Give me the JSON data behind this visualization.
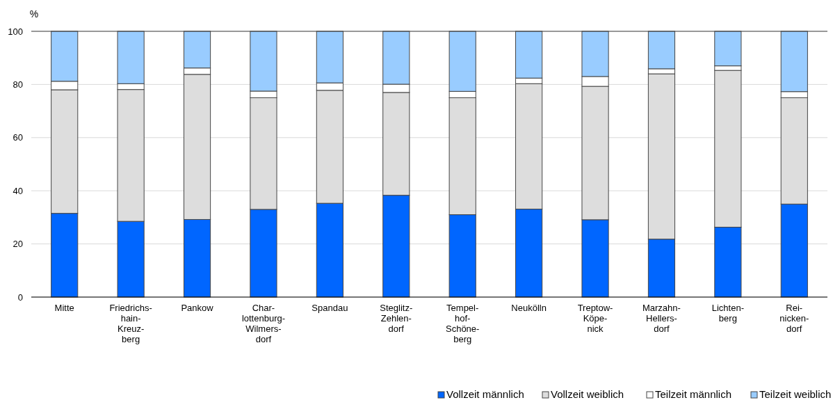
{
  "chart_data": {
    "type": "bar",
    "stacked": true,
    "ylabel": "%",
    "categories": [
      "Mitte",
      "Friedrichs-\nhain-\nKreuz-\nberg",
      "Pankow",
      "Char-\nlottenburg-\nWilmers-\ndorf",
      "Spandau",
      "Steglitz-\nZehlen-\ndorf",
      "Tempel-\nhof-\nSchöne-\nberg",
      "Neukölln",
      "Treptow-\nKöpe-\nnick",
      "Marzahn-\nHellers-\ndorf",
      "Lichten-\nberg",
      "Rei-\nnicken-\ndorf"
    ],
    "series": [
      {
        "name": "Vollzeit männlich",
        "color": "#0066ff",
        "values": [
          31.5,
          28.5,
          29.2,
          33,
          35.3,
          38.3,
          31,
          33.1,
          29.1,
          21.8,
          26.3,
          35
        ]
      },
      {
        "name": "Vollzeit weiblich",
        "color": "#dddddd",
        "values": [
          46.5,
          49.6,
          54.6,
          42,
          42.5,
          38.7,
          44,
          47.2,
          50.2,
          62.2,
          59,
          40
        ]
      },
      {
        "name": "Teilzeit männlich",
        "color": "#ffffff",
        "values": [
          3.2,
          2.2,
          2.4,
          2.5,
          2.8,
          3.1,
          2.4,
          2.1,
          3.7,
          1.9,
          1.7,
          2.3
        ]
      },
      {
        "name": "Teilzeit weiblich",
        "color": "#99ccff",
        "values": [
          18.8,
          19.7,
          13.8,
          22.5,
          19.4,
          19.9,
          22.6,
          17.6,
          17,
          14.1,
          13,
          22.7
        ]
      }
    ],
    "ylim": [
      0,
      100
    ],
    "yticks": [
      0,
      20,
      40,
      60,
      80,
      100
    ],
    "grid": "y",
    "legend": "bottom right"
  }
}
